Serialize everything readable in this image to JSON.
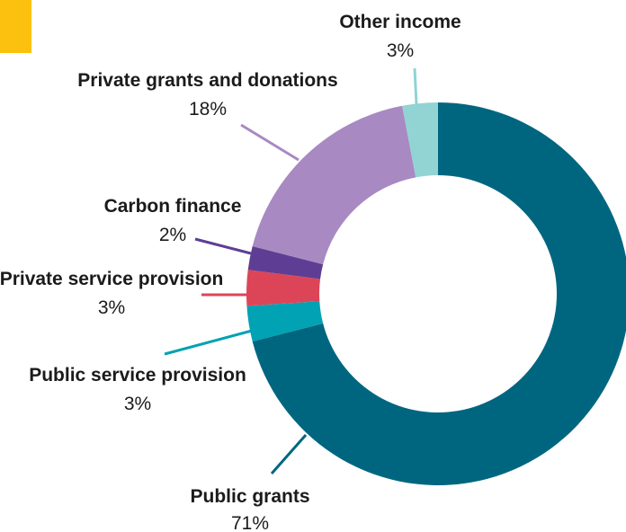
{
  "colors": {
    "accent": "#fcc10e",
    "background": "#ffffff",
    "text": "#1b1b1b"
  },
  "chart_data": {
    "type": "pie",
    "title": "",
    "donut": true,
    "slices": [
      {
        "label": "Public grants",
        "value": 71,
        "display": "71%",
        "color": "#006680"
      },
      {
        "label": "Public service provision",
        "value": 3,
        "display": "3%",
        "color": "#00a2b3"
      },
      {
        "label": "Private service provision",
        "value": 3,
        "display": "3%",
        "color": "#dc4557"
      },
      {
        "label": "Carbon finance",
        "value": 2,
        "display": "2%",
        "color": "#5e3e94"
      },
      {
        "label": "Private grants and donations",
        "value": 18,
        "display": "18%",
        "color": "#a889c2"
      },
      {
        "label": "Other income",
        "value": 3,
        "display": "3%",
        "color": "#92d3d4"
      }
    ],
    "legend": "none",
    "labels": "outside-with-leader-lines"
  }
}
